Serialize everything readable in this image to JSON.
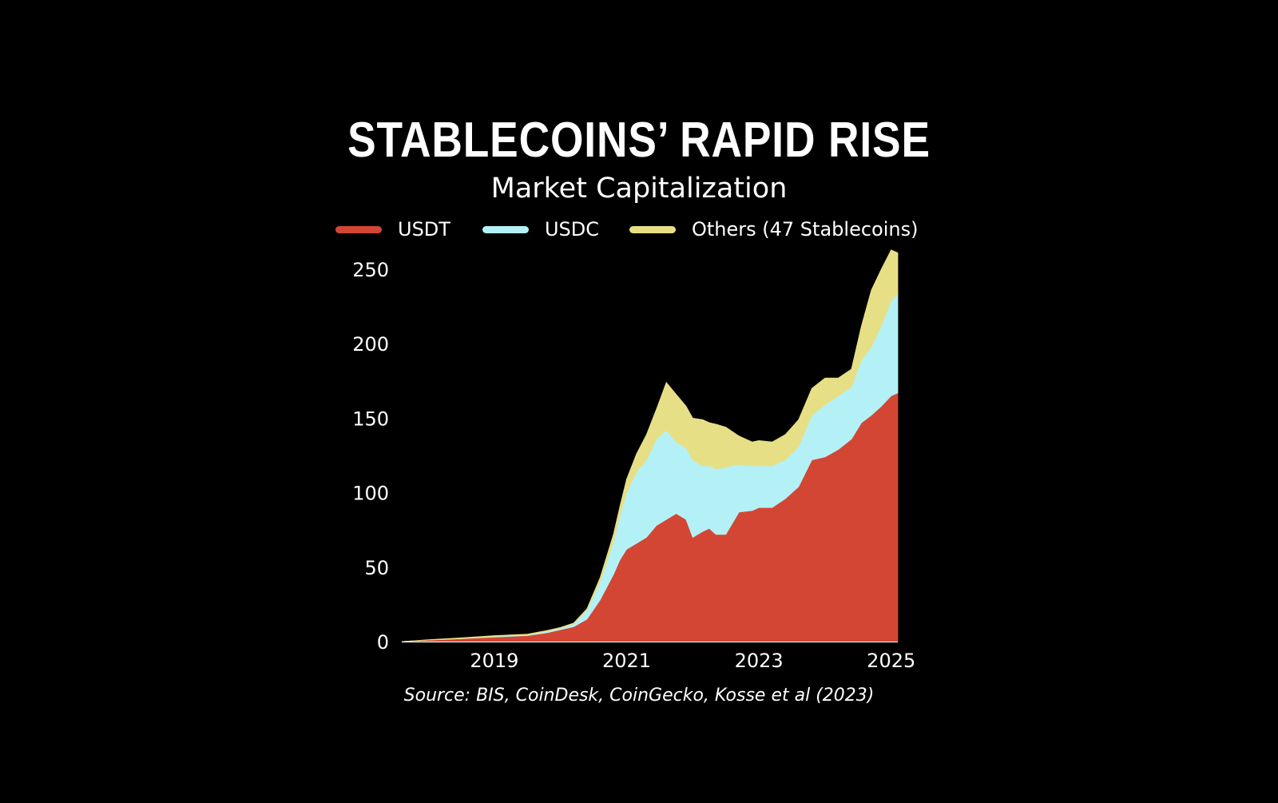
{
  "colors": {
    "background": "#000000",
    "text": "#ffffff",
    "usdt": "#d44634",
    "usdc": "#b3f1f7",
    "others": "#e6df86"
  },
  "chart_data": {
    "type": "area",
    "stacked": true,
    "title": "STABLECOINS’ RAPID RISE",
    "subtitle": "Market Capitalization",
    "source": "Source: BIS, CoinDesk, CoinGecko, Kosse et al (2023)",
    "xlim": [
      2017.6,
      2025.1
    ],
    "ylim": [
      0,
      260
    ],
    "y_ticks": [
      0,
      50,
      100,
      150,
      200,
      250
    ],
    "x_ticks": [
      2019,
      2021,
      2023,
      2025
    ],
    "grid": false,
    "legend_position": "top",
    "x": [
      2017.6,
      2018.0,
      2018.5,
      2019.0,
      2019.5,
      2019.8,
      2020.0,
      2020.2,
      2020.4,
      2020.6,
      2020.8,
      2020.9,
      2021.0,
      2021.15,
      2021.3,
      2021.45,
      2021.6,
      2021.75,
      2021.9,
      2022.0,
      2022.15,
      2022.25,
      2022.35,
      2022.5,
      2022.7,
      2022.9,
      2023.0,
      2023.2,
      2023.4,
      2023.6,
      2023.8,
      2024.0,
      2024.2,
      2024.4,
      2024.55,
      2024.7,
      2024.85,
      2025.0,
      2025.1
    ],
    "series": [
      {
        "name": "USDT",
        "values": [
          0,
          1,
          2,
          3,
          4,
          6,
          8,
          10,
          15,
          28,
          45,
          55,
          62,
          66,
          70,
          78,
          82,
          86,
          82,
          70,
          74,
          76,
          72,
          72,
          87,
          88,
          90,
          90,
          96,
          104,
          122,
          124,
          129,
          136,
          147,
          152,
          158,
          165,
          167
        ]
      },
      {
        "name": "USDC",
        "values": [
          0,
          0,
          0,
          0.5,
          0.5,
          1,
          1,
          2,
          6,
          12,
          22,
          30,
          38,
          48,
          52,
          58,
          60,
          48,
          48,
          52,
          44,
          42,
          44,
          45,
          32,
          30,
          28,
          28,
          26,
          27,
          30,
          35,
          36,
          35,
          42,
          46,
          54,
          64,
          66
        ]
      },
      {
        "name": "Others (47 Stablecoins)",
        "values": [
          0,
          0.3,
          0.5,
          0.5,
          0.5,
          0.5,
          0.5,
          0.5,
          1,
          3,
          5,
          6,
          9,
          12,
          17,
          20,
          32,
          32,
          28,
          28,
          31,
          29,
          30,
          27,
          19,
          16,
          17,
          16,
          17,
          18,
          18,
          18,
          12,
          12,
          23,
          38,
          38,
          34,
          28
        ]
      }
    ]
  }
}
